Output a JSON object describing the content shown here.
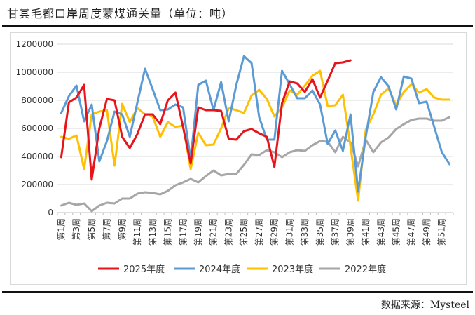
{
  "header": {
    "title": "甘其毛都口岸周度蒙煤通关量（单位：吨）"
  },
  "footer": {
    "source": "数据来源：Mysteel"
  },
  "chart_data": {
    "type": "line",
    "title": "甘其毛都口岸周度蒙煤通关量（单位：吨）",
    "xlabel": "",
    "ylabel": "吨",
    "ylim": [
      0,
      1200000
    ],
    "yticks": [
      0,
      200000,
      400000,
      600000,
      800000,
      1000000,
      1200000
    ],
    "ytick_labels": [
      "0",
      "200000",
      "400000",
      "600000",
      "800000",
      "1000000",
      "1200000"
    ],
    "categories": [
      "第1周",
      "第2周",
      "第3周",
      "第4周",
      "第5周",
      "第6周",
      "第7周",
      "第8周",
      "第9周",
      "第10周",
      "第11周",
      "第12周",
      "第13周",
      "第14周",
      "第15周",
      "第16周",
      "第17周",
      "第18周",
      "第19周",
      "第20周",
      "第21周",
      "第22周",
      "第23周",
      "第24周",
      "第25周",
      "第26周",
      "第27周",
      "第28周",
      "第29周",
      "第30周",
      "第31周",
      "第32周",
      "第33周",
      "第34周",
      "第35周",
      "第36周",
      "第37周",
      "第38周",
      "第39周",
      "第40周",
      "第41周",
      "第42周",
      "第43周",
      "第44周",
      "第45周",
      "第46周",
      "第47周",
      "第48周",
      "第49周",
      "第50周",
      "第51周",
      "第52周"
    ],
    "xtick_labels": [
      "第1周",
      "第3周",
      "第5周",
      "第7周",
      "第9周",
      "第11周",
      "第13周",
      "第15周",
      "第17周",
      "第19周",
      "第21周",
      "第23周",
      "第25周",
      "第27周",
      "第29周",
      "第31周",
      "第33周",
      "第35周",
      "第37周",
      "第39周",
      "第41周",
      "第43周",
      "第45周",
      "第47周",
      "第49周",
      "第51周"
    ],
    "legend_position": "bottom",
    "series": [
      {
        "name": "2025年度",
        "color": "#e8141b",
        "values": [
          395000,
          785000,
          820000,
          910000,
          235000,
          600000,
          810000,
          800000,
          540000,
          460000,
          560000,
          700000,
          700000,
          630000,
          800000,
          855000,
          610000,
          350000,
          750000,
          730000,
          730000,
          725000,
          525000,
          520000,
          580000,
          595000,
          565000,
          540000,
          325000,
          780000,
          935000,
          920000,
          860000,
          950000,
          820000,
          940000,
          1065000,
          1070000,
          1085000,
          null,
          null,
          null,
          null,
          null,
          null,
          null,
          null,
          null,
          null,
          null,
          null,
          null
        ]
      },
      {
        "name": "2024年度",
        "color": "#5b9bd5",
        "values": [
          710000,
          830000,
          905000,
          650000,
          770000,
          365000,
          510000,
          720000,
          700000,
          540000,
          785000,
          1025000,
          880000,
          730000,
          735000,
          770000,
          750000,
          380000,
          910000,
          940000,
          730000,
          930000,
          650000,
          910000,
          1115000,
          1065000,
          680000,
          520000,
          520000,
          1010000,
          915000,
          815000,
          815000,
          870000,
          770000,
          490000,
          585000,
          440000,
          700000,
          150000,
          540000,
          860000,
          965000,
          900000,
          735000,
          970000,
          955000,
          780000,
          790000,
          610000,
          430000,
          345000
        ]
      },
      {
        "name": "2023年度",
        "color": "#ffc000",
        "values": [
          540000,
          525000,
          550000,
          310000,
          700000,
          720000,
          730000,
          335000,
          775000,
          645000,
          745000,
          700000,
          685000,
          540000,
          645000,
          610000,
          620000,
          310000,
          570000,
          480000,
          485000,
          600000,
          745000,
          730000,
          710000,
          835000,
          875000,
          810000,
          685000,
          750000,
          870000,
          840000,
          905000,
          975000,
          1010000,
          760000,
          765000,
          840000,
          470000,
          85000,
          590000,
          700000,
          840000,
          885000,
          765000,
          860000,
          915000,
          855000,
          880000,
          820000,
          805000,
          805000
        ]
      },
      {
        "name": "2022年度",
        "color": "#a6a6a6",
        "values": [
          50000,
          70000,
          55000,
          65000,
          10000,
          50000,
          70000,
          65000,
          100000,
          100000,
          135000,
          145000,
          140000,
          130000,
          155000,
          195000,
          215000,
          240000,
          215000,
          260000,
          300000,
          265000,
          275000,
          275000,
          340000,
          415000,
          410000,
          445000,
          430000,
          395000,
          430000,
          445000,
          440000,
          480000,
          510000,
          505000,
          430000,
          540000,
          500000,
          330000,
          520000,
          430000,
          500000,
          535000,
          595000,
          630000,
          660000,
          670000,
          670000,
          655000,
          655000,
          680000
        ]
      }
    ]
  }
}
